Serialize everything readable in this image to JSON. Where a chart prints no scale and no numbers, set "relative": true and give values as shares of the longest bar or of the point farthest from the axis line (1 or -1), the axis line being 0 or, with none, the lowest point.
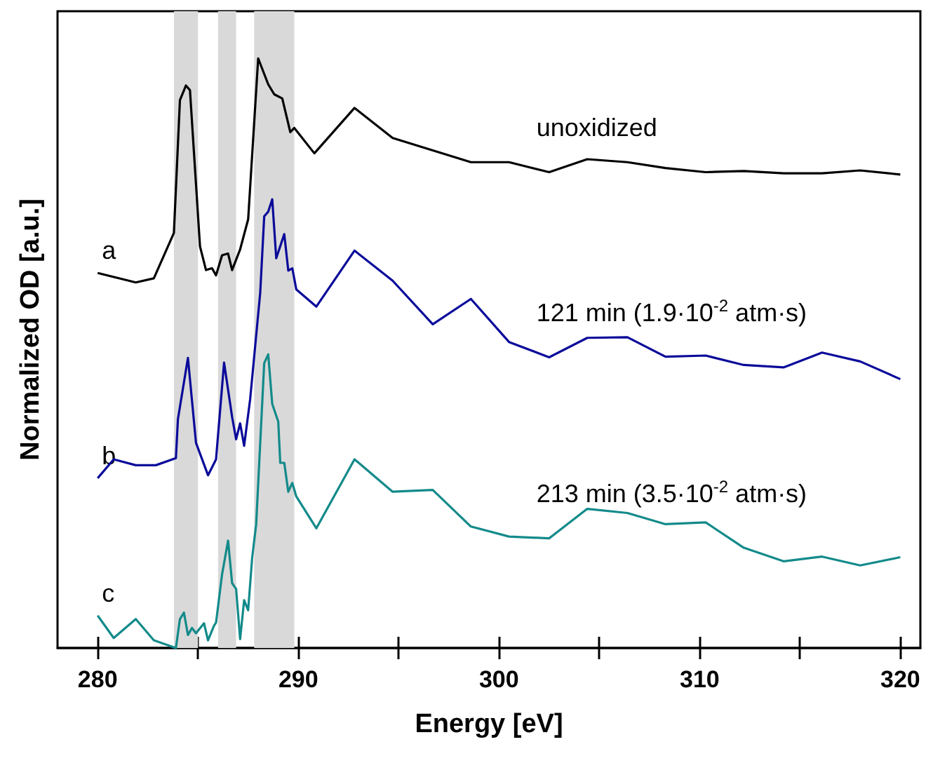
{
  "chart_data": {
    "type": "line",
    "relative": true,
    "xlabel": "Energy [eV]",
    "ylabel": "Normalized OD [a.u.]",
    "xlim": [
      278,
      321
    ],
    "xticks": [
      280,
      {
        "value": 285,
        "label": null
      },
      290,
      {
        "value": 295,
        "label": null
      },
      300,
      {
        "value": 305,
        "label": null
      },
      310,
      {
        "value": 315,
        "label": null
      },
      320
    ],
    "grid": false,
    "legend": false,
    "marker": "none",
    "line_style": "solid",
    "bands": [
      {
        "axis": "x",
        "from": 283.8,
        "to": 285.0,
        "color": "#d9d9d9"
      },
      {
        "axis": "x",
        "from": 286.0,
        "to": 286.9,
        "color": "#d9d9d9"
      },
      {
        "axis": "x",
        "from": 287.8,
        "to": 289.8,
        "color": "#d9d9d9"
      }
    ],
    "annotations": [
      "unoxidized",
      "121 min (1.9·10$^{-2}$ atm·s)",
      "213 min (3.5·10$^{-2}$ atm·s)"
    ],
    "series": [
      {
        "name": "a",
        "color": "#000000",
        "x": [
          280,
          281.9,
          282.8,
          283.8,
          284.1,
          284.4,
          284.6,
          285.1,
          285.4,
          285.7,
          285.9,
          286.2,
          286.5,
          286.7,
          287.1,
          287.5,
          288.0,
          288.5,
          288.8,
          289.2,
          289.6,
          289.8,
          290.8,
          292.8,
          294.7,
          298.6,
          300.5,
          302.5,
          304.4,
          306.4,
          308.3,
          310.3,
          312.2,
          314.2,
          316.1,
          318.0,
          320.0
        ],
        "values": [
          0.636,
          0.62,
          0.627,
          0.704,
          0.929,
          0.954,
          0.946,
          0.681,
          0.641,
          0.644,
          0.632,
          0.666,
          0.669,
          0.641,
          0.676,
          0.727,
          1.0,
          0.956,
          0.939,
          0.932,
          0.875,
          0.882,
          0.839,
          0.916,
          0.865,
          0.824,
          0.824,
          0.807,
          0.829,
          0.824,
          0.814,
          0.807,
          0.809,
          0.805,
          0.805,
          0.81,
          0.803
        ]
      },
      {
        "name": "b",
        "color": "#0a0a9a",
        "x": [
          280,
          280.8,
          281.9,
          282.9,
          283.9,
          284.0,
          284.5,
          284.9,
          285.5,
          285.9,
          286.3,
          286.7,
          286.9,
          287.1,
          287.3,
          287.6,
          288.1,
          288.3,
          288.5,
          288.7,
          288.9,
          289.3,
          289.5,
          289.7,
          289.9,
          290.9,
          292.8,
          294.7,
          296.7,
          298.6,
          300.5,
          302.5,
          304.4,
          306.4,
          308.3,
          310.3,
          312.2,
          314.2,
          316.1,
          318.0,
          320.0
        ],
        "values": [
          0.288,
          0.32,
          0.31,
          0.31,
          0.322,
          0.388,
          0.492,
          0.348,
          0.293,
          0.32,
          0.484,
          0.392,
          0.354,
          0.381,
          0.343,
          0.422,
          0.602,
          0.732,
          0.74,
          0.761,
          0.661,
          0.702,
          0.64,
          0.644,
          0.608,
          0.579,
          0.674,
          0.623,
          0.549,
          0.592,
          0.519,
          0.493,
          0.526,
          0.527,
          0.494,
          0.496,
          0.48,
          0.476,
          0.501,
          0.486,
          0.456
        ]
      },
      {
        "name": "c",
        "color": "#138a8a",
        "x": [
          280,
          280.8,
          281.9,
          282.8,
          283.9,
          284.1,
          284.3,
          284.5,
          284.7,
          284.9,
          285.3,
          285.5,
          285.8,
          285.9,
          286.2,
          286.5,
          286.7,
          286.9,
          287.1,
          287.3,
          287.5,
          287.7,
          287.9,
          288.3,
          288.5,
          288.7,
          289.0,
          289.1,
          289.3,
          289.5,
          289.7,
          289.9,
          290.9,
          292.8,
          294.7,
          296.7,
          298.6,
          300.5,
          302.5,
          304.4,
          306.4,
          308.3,
          310.3,
          312.2,
          314.2,
          316.1,
          318.0,
          320.0
        ],
        "values": [
          0.055,
          0.017,
          0.049,
          0.013,
          0,
          0.049,
          0.06,
          0.022,
          0.034,
          0.025,
          0.042,
          0.013,
          0.038,
          0.043,
          0.125,
          0.182,
          0.11,
          0.1,
          0.015,
          0.081,
          0.064,
          0.153,
          0.21,
          0.483,
          0.498,
          0.414,
          0.384,
          0.314,
          0.314,
          0.265,
          0.28,
          0.257,
          0.203,
          0.32,
          0.265,
          0.268,
          0.206,
          0.189,
          0.186,
          0.236,
          0.229,
          0.21,
          0.213,
          0.17,
          0.147,
          0.155,
          0.14,
          0.154
        ]
      }
    ]
  }
}
